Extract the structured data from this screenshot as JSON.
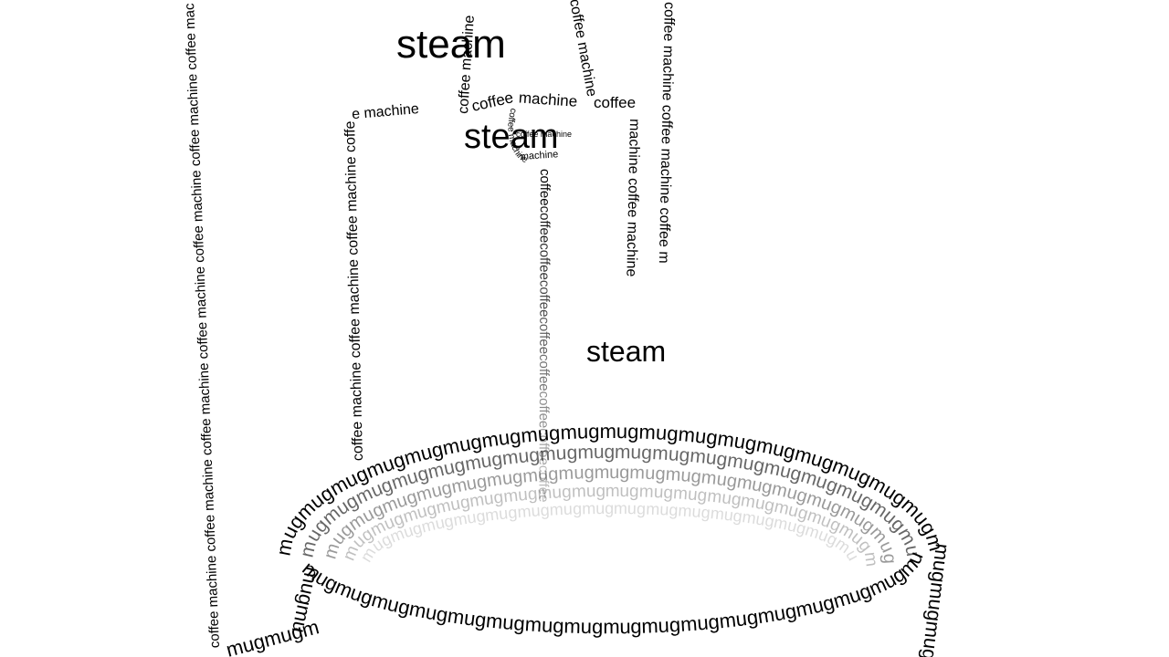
{
  "scene": {
    "machine_phrase": "coffee machine",
    "coffee_word": "coffee",
    "machine_word": "machine",
    "mug_word": "mug",
    "steam_word": "steam",
    "steam_labels": [
      "steam",
      "steam",
      "steam"
    ],
    "fragments": [
      "coffee m",
      "machine coffee machine"
    ]
  },
  "colors": {
    "background": "#ffffff",
    "ink": "#000000",
    "steam_dark": "#9a9a9a",
    "steam_mid": "#b3b3b3",
    "steam_light": "#cfcfcf"
  }
}
